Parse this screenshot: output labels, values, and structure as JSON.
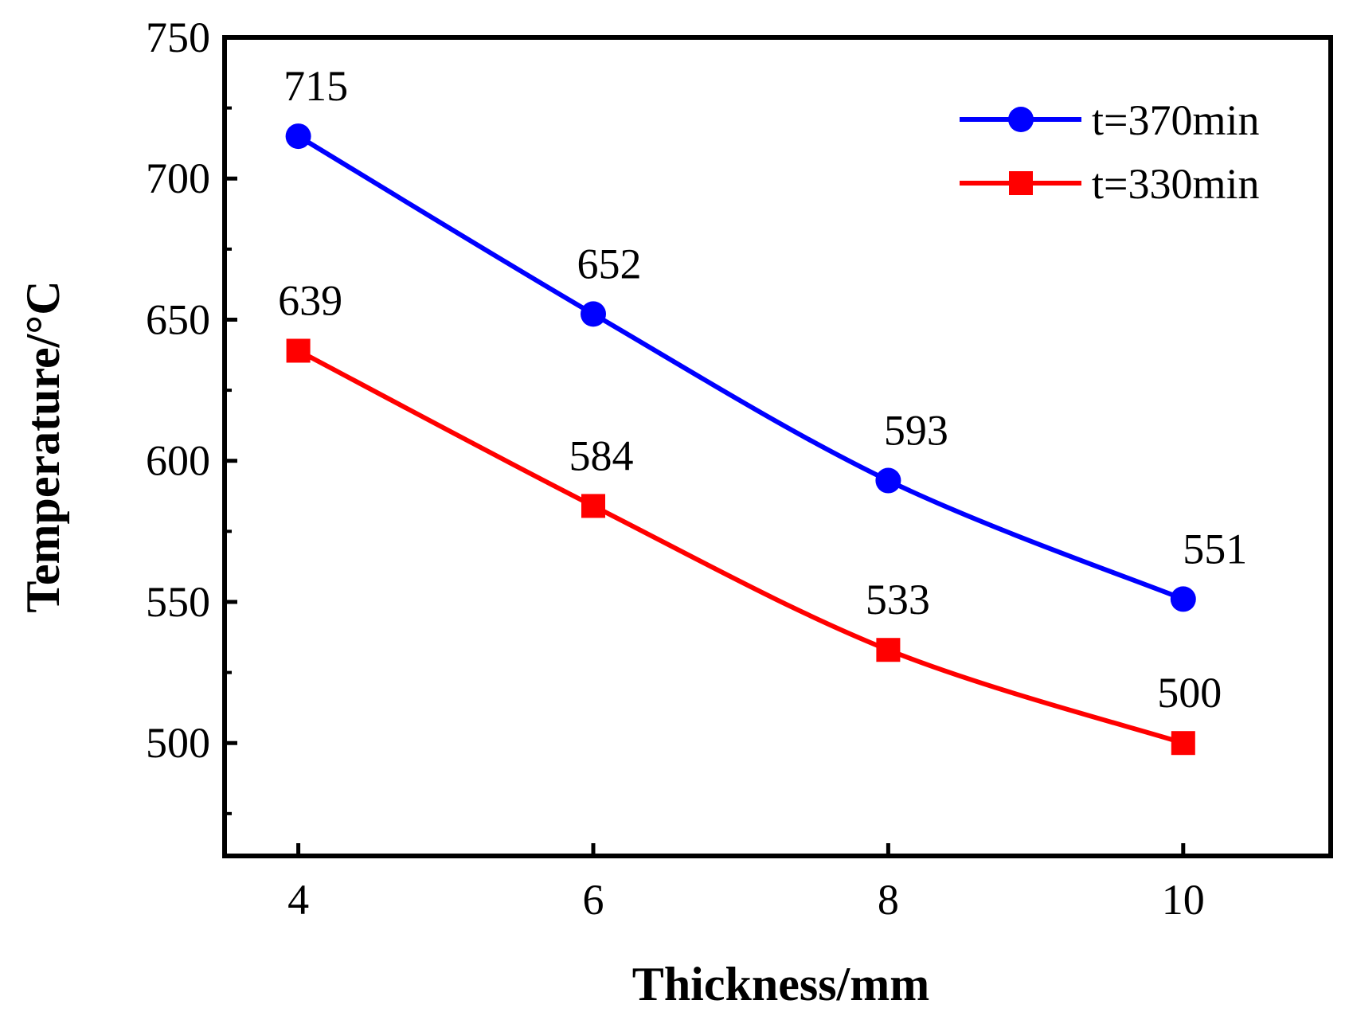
{
  "chart_data": {
    "type": "line",
    "title": "",
    "xlabel": "Thickness/mm",
    "ylabel": "Temperature/°C",
    "x": [
      4,
      6,
      8,
      10
    ],
    "x_ticks": [
      "4",
      "6",
      "8",
      "10"
    ],
    "xlim": [
      3.5,
      11
    ],
    "ylim": [
      460,
      750
    ],
    "y_ticks": [
      "500",
      "550",
      "600",
      "650",
      "700",
      "750"
    ],
    "y_tick_values": [
      500,
      550,
      600,
      650,
      700,
      750
    ],
    "y_minor_tick_values": [
      475,
      525,
      575,
      625,
      675,
      725
    ],
    "grid": false,
    "legend_position": "top-right",
    "series": [
      {
        "name": "t=370min",
        "color": "#0000ff",
        "marker": "circle",
        "values": [
          715,
          652,
          593,
          551
        ],
        "labels": [
          "715",
          "652",
          "593",
          "551"
        ]
      },
      {
        "name": "t=330min",
        "color": "#ff0000",
        "marker": "square",
        "values": [
          639,
          584,
          533,
          500
        ],
        "labels": [
          "639",
          "584",
          "533",
          "500"
        ]
      }
    ]
  }
}
